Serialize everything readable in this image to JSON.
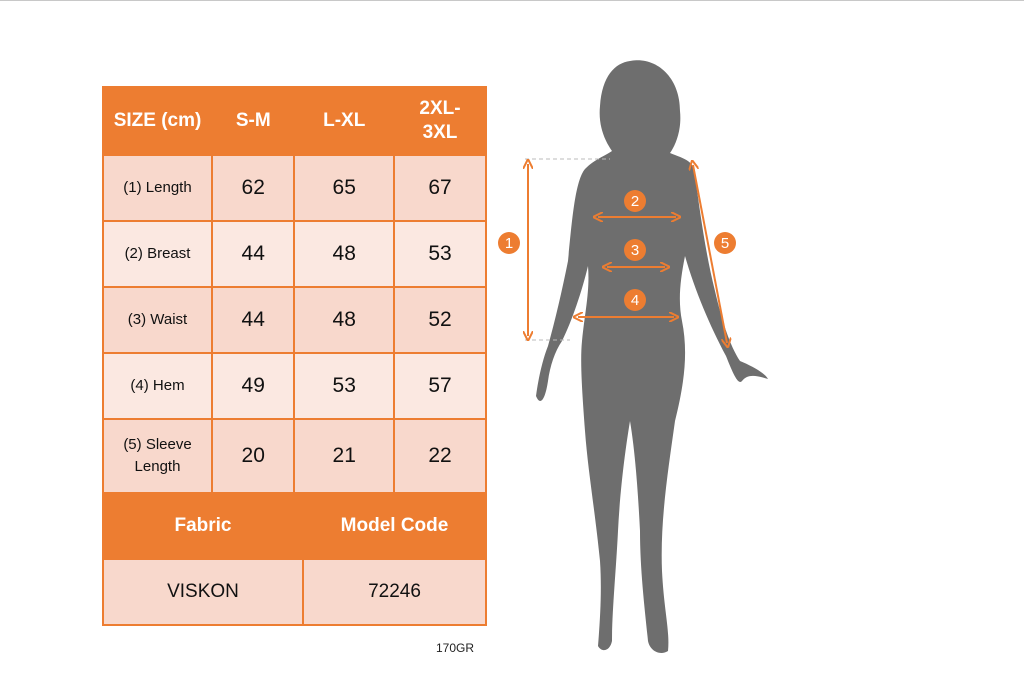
{
  "table": {
    "header": [
      "SIZE (cm)",
      "S-M",
      "L-XL",
      "2XL-3XL"
    ],
    "rows": [
      {
        "label": "(1) Length",
        "values": [
          "62",
          "65",
          "67"
        ]
      },
      {
        "label": "(2) Breast",
        "values": [
          "44",
          "48",
          "53"
        ]
      },
      {
        "label": "(3) Waist",
        "values": [
          "44",
          "48",
          "52"
        ]
      },
      {
        "label": "(4) Hem",
        "values": [
          "49",
          "53",
          "57"
        ]
      },
      {
        "label": "(5) Sleeve Length",
        "values": [
          "20",
          "21",
          "22"
        ]
      }
    ],
    "footer_headers": [
      "Fabric",
      "Model Code"
    ],
    "footer_values": [
      "VISKON",
      "72246"
    ]
  },
  "weight_note": "170GR",
  "figure": {
    "markers": [
      "1",
      "2",
      "3",
      "4",
      "5"
    ]
  },
  "colors": {
    "accent": "#ed7d31",
    "silhouette": "#6e6e6e"
  }
}
